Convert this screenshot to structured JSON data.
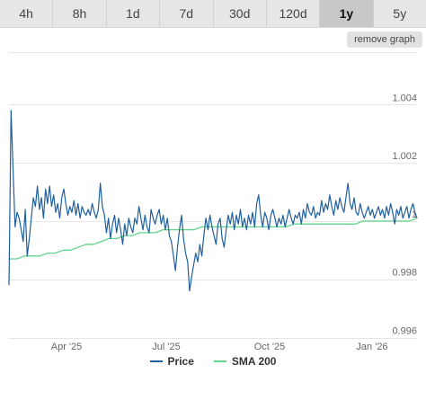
{
  "ranges": [
    "4h",
    "8h",
    "1d",
    "7d",
    "30d",
    "120d",
    "1y",
    "5y"
  ],
  "active_range": "1y",
  "remove_label": "remove graph",
  "colors": {
    "price": "#1f5f9e",
    "sma": "#5fd68b",
    "grid": "#e6e6e6"
  },
  "chart_data": {
    "type": "line",
    "x_ticks": [
      "Apr '25",
      "Jul '25",
      "Oct '25",
      "Jan '26"
    ],
    "y_ticks": [
      0.996,
      0.998,
      1.0,
      1.002,
      1.004
    ],
    "y_tick_labels": [
      "0.996",
      "0.998",
      "1",
      "1.002",
      "1.004"
    ],
    "ylim": [
      0.9958,
      1.0058
    ],
    "grid": true,
    "legend_position": "bottom",
    "series": [
      {
        "name": "Price",
        "values": [
          0.9978,
          1.0038,
          1.0018,
          0.9998,
          1.0003,
          1.0001,
          0.9997,
          0.9993,
          1.0004,
          0.9988,
          0.9994,
          1.0001,
          1.0008,
          1.0005,
          1.0012,
          1.0004,
          1.0008,
          1.0001,
          1.0011,
          1.0006,
          1.0012,
          1.0005,
          1.0009,
          1.0003,
          1.0006,
          1.0001,
          1.0008,
          1.0011,
          1.0006,
          1.0002,
          1.0005,
          1.0003,
          1.0007,
          1.0002,
          1.0006,
          1.0001,
          1.0005,
          1.0003,
          1.0002,
          1.0004,
          1.0002,
          1.0006,
          1.0003,
          1.0001,
          1.0004,
          1.0013,
          1.0005,
          1.0002,
          0.9996,
          1.0001,
          0.9994,
          0.9999,
          1.0002,
          0.9996,
          1.0001,
          0.9997,
          0.9992,
          0.9999,
          0.9995,
          1.0001,
          0.9998,
          0.9996,
          1.0001,
          0.9999,
          1.0005,
          1.0001,
          0.9997,
          1.0002,
          0.9998,
          0.9996,
          1.0004,
          1.0001,
          0.9999,
          1.0002,
          1.0004,
          0.9999,
          1.0002,
          0.9997,
          1.0001,
          0.9995,
          0.9993,
          0.9988,
          0.9983,
          0.9991,
          0.9997,
          1.0002,
          0.9994,
          0.9989,
          0.9986,
          0.9976,
          0.9981,
          0.9985,
          0.9989,
          0.9986,
          0.9992,
          0.9988,
          0.9995,
          1.0001,
          0.9997,
          1.0002,
          0.9998,
          0.9995,
          0.9992,
          0.9999,
          1.0001,
          0.9994,
          0.9991,
          0.9997,
          1.0002,
          0.9999,
          1.0003,
          0.9997,
          1.0002,
          0.9999,
          1.0004,
          0.9998,
          1.0001,
          0.9997,
          1.0002,
          0.9999,
          1.0003,
          0.9998,
          1.0006,
          1.0009,
          1.0002,
          0.9998,
          1.0003,
          1.0001,
          0.9997,
          1.0002,
          1.0004,
          1.0001,
          0.9998,
          1.0001,
          0.9999,
          1.0002,
          0.9998,
          1.0001,
          1.0004,
          1.0001,
          0.9999,
          1.0002,
          1.0001,
          1.0003,
          0.9999,
          1.0004,
          1.0001,
          1.0006,
          1.0003,
          1.0002,
          1.0005,
          1.0001,
          1.0003,
          1.0002,
          1.0007,
          1.0003,
          1.0006,
          1.0004,
          1.0009,
          1.0005,
          1.0002,
          1.0007,
          1.0004,
          1.0008,
          1.0005,
          1.0003,
          1.0008,
          1.0013,
          1.0006,
          1.0004,
          1.0008,
          1.0003,
          1.0002,
          1.0006,
          1.0003,
          1.0001,
          1.0003,
          1.0005,
          1.0002,
          1.0004,
          1.0001,
          1.0003,
          1.0005,
          1.0002,
          1.0004,
          1.0001,
          1.0005,
          1.0002,
          1.0006,
          1.0003,
          0.9999,
          1.0004,
          1.0002,
          1.0005,
          1.0001,
          1.0003,
          1.0005,
          1.0001,
          1.0004,
          1.0006,
          1.0003,
          1.0001
        ]
      },
      {
        "name": "SMA 200",
        "values": [
          0.9987,
          0.9987,
          0.9988,
          0.9988,
          0.9988,
          0.9989,
          0.9989,
          0.999,
          0.999,
          0.9991,
          0.9992,
          0.9992,
          0.9993,
          0.9994,
          0.9994,
          0.9995,
          0.9995,
          0.9996,
          0.9996,
          0.9996,
          0.9997,
          0.9997,
          0.9997,
          0.9997,
          0.9997,
          0.9998,
          0.9998,
          0.9998,
          0.9998,
          0.9998,
          0.9998,
          0.9998,
          0.9998,
          0.9998,
          0.9998,
          0.9998,
          0.9998,
          0.9999,
          0.9999,
          0.9999,
          0.9999,
          0.9999,
          0.9999,
          0.9999,
          0.9999,
          0.9999,
          1.0,
          1.0,
          1.0,
          1.0,
          1.0,
          1.0,
          1.0,
          1.0001
        ]
      }
    ]
  }
}
